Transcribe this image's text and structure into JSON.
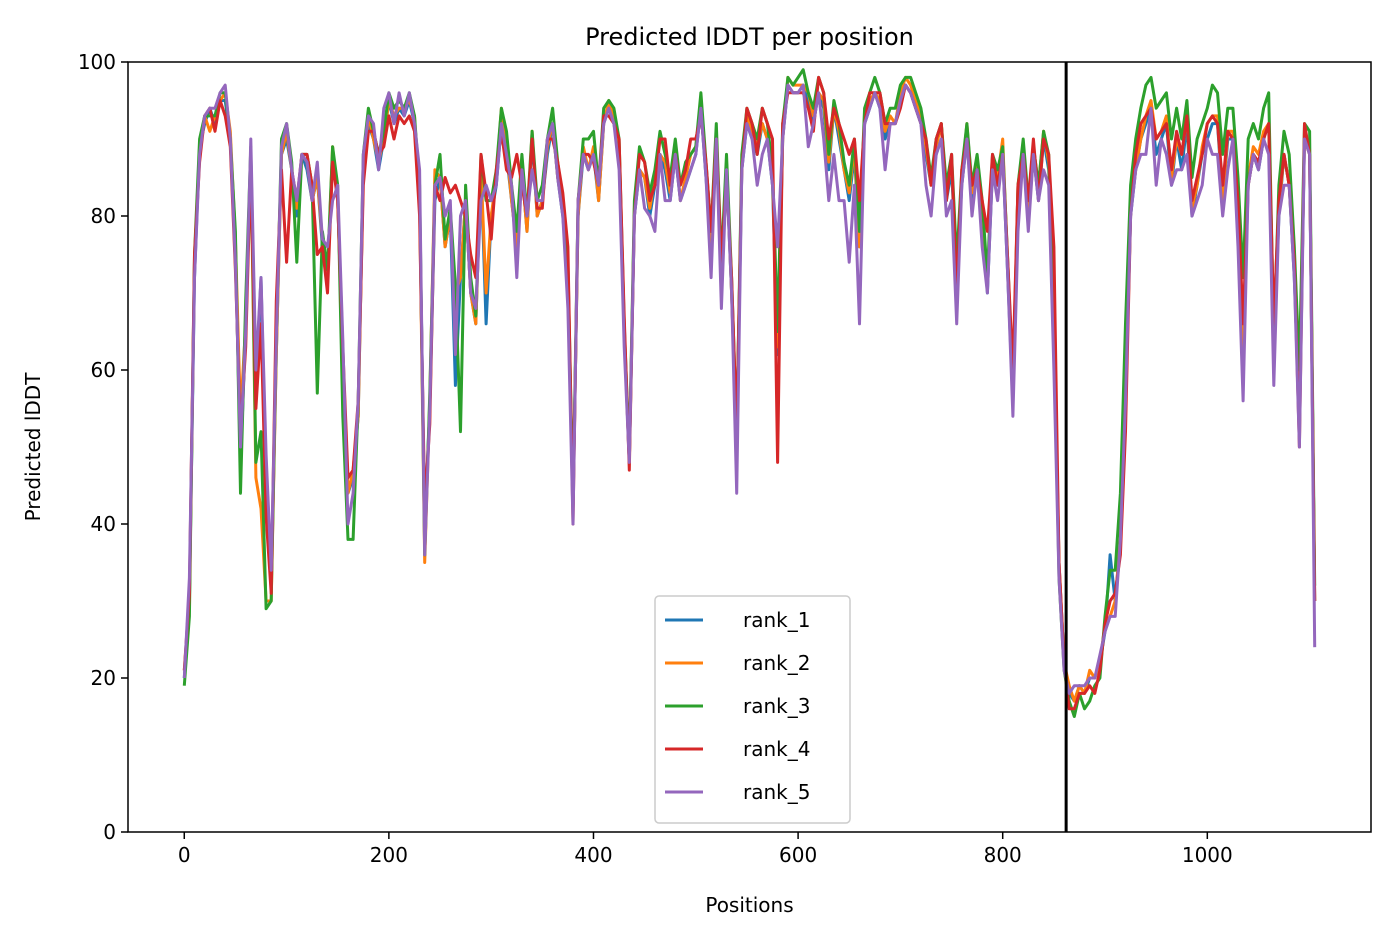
{
  "chart_data": {
    "type": "line",
    "title": "Predicted lDDT per position",
    "xlabel": "Positions",
    "ylabel": "Predicted lDDT",
    "xlim": [
      -55,
      1160
    ],
    "ylim": [
      0,
      100
    ],
    "xticks": [
      0,
      200,
      400,
      600,
      800,
      1000
    ],
    "yticks": [
      0,
      20,
      40,
      60,
      80,
      100
    ],
    "grid": false,
    "legend_position": "bottom-center",
    "vline_x": 862,
    "series": [
      {
        "name": "rank_1",
        "color": "#1f77b4"
      },
      {
        "name": "rank_2",
        "color": "#ff7f0e"
      },
      {
        "name": "rank_3",
        "color": "#2ca02c"
      },
      {
        "name": "rank_4",
        "color": "#d62728"
      },
      {
        "name": "rank_5",
        "color": "#9467bd"
      }
    ],
    "x": [
      0,
      5,
      10,
      15,
      20,
      25,
      30,
      35,
      40,
      45,
      50,
      55,
      60,
      65,
      70,
      75,
      80,
      85,
      90,
      95,
      100,
      105,
      110,
      115,
      120,
      125,
      130,
      135,
      140,
      145,
      150,
      155,
      160,
      165,
      170,
      175,
      180,
      185,
      190,
      195,
      200,
      205,
      210,
      215,
      220,
      225,
      230,
      235,
      240,
      245,
      250,
      255,
      260,
      265,
      270,
      275,
      280,
      285,
      290,
      295,
      300,
      305,
      310,
      315,
      320,
      325,
      330,
      335,
      340,
      345,
      350,
      355,
      360,
      365,
      370,
      375,
      380,
      385,
      390,
      395,
      400,
      405,
      410,
      415,
      420,
      425,
      430,
      435,
      440,
      445,
      450,
      455,
      460,
      465,
      470,
      475,
      480,
      485,
      490,
      495,
      500,
      505,
      510,
      515,
      520,
      525,
      530,
      535,
      540,
      545,
      550,
      555,
      560,
      565,
      570,
      575,
      580,
      585,
      590,
      595,
      600,
      605,
      610,
      615,
      620,
      625,
      630,
      635,
      640,
      645,
      650,
      655,
      660,
      665,
      670,
      675,
      680,
      685,
      690,
      695,
      700,
      705,
      710,
      715,
      720,
      725,
      730,
      735,
      740,
      745,
      750,
      755,
      760,
      765,
      770,
      775,
      780,
      785,
      790,
      795,
      800,
      805,
      810,
      815,
      820,
      825,
      830,
      835,
      840,
      845,
      850,
      855,
      860,
      865,
      870,
      875,
      880,
      885,
      890,
      895,
      900,
      905,
      910,
      915,
      920,
      925,
      930,
      935,
      940,
      945,
      950,
      955,
      960,
      965,
      970,
      975,
      980,
      985,
      990,
      995,
      1000,
      1005,
      1010,
      1015,
      1020,
      1025,
      1030,
      1035,
      1040,
      1045,
      1050,
      1055,
      1060,
      1065,
      1070,
      1075,
      1080,
      1085,
      1090,
      1095,
      1100,
      1105
    ],
    "base": [
      20,
      30,
      72,
      88,
      92,
      94,
      92,
      95,
      95,
      90,
      75,
      48,
      65,
      88,
      58,
      72,
      45,
      32,
      62,
      88,
      90,
      86,
      80,
      88,
      86,
      82,
      85,
      76,
      72,
      88,
      82,
      62,
      44,
      46,
      54,
      86,
      92,
      90,
      86,
      90,
      95,
      92,
      94,
      93,
      95,
      92,
      82,
      40,
      55,
      82,
      85,
      76,
      80,
      70,
      72,
      82,
      70,
      66,
      86,
      80,
      80,
      84,
      92,
      88,
      82,
      76,
      86,
      78,
      90,
      80,
      82,
      88,
      92,
      85,
      80,
      72,
      42,
      80,
      88,
      86,
      88,
      82,
      92,
      94,
      92,
      88,
      65,
      48,
      80,
      86,
      85,
      80,
      84,
      88,
      86,
      82,
      88,
      82,
      84,
      86,
      88,
      94,
      85,
      76,
      90,
      72,
      86,
      70,
      50,
      86,
      92,
      90,
      88,
      92,
      90,
      84,
      62,
      90,
      97,
      96,
      96,
      97,
      95,
      92,
      96,
      94,
      86,
      94,
      90,
      86,
      82,
      88,
      76,
      92,
      94,
      96,
      94,
      90,
      92,
      92,
      95,
      97,
      96,
      94,
      92,
      88,
      84,
      88,
      90,
      82,
      86,
      72,
      84,
      90,
      82,
      86,
      80,
      70,
      86,
      84,
      88,
      72,
      56,
      82,
      88,
      80,
      88,
      82,
      90,
      86,
      66,
      35,
      22,
      18,
      17,
      19,
      18,
      20,
      20,
      22,
      26,
      28,
      30,
      38,
      56,
      80,
      86,
      90,
      92,
      94,
      88,
      90,
      92,
      84,
      90,
      86,
      92,
      80,
      84,
      88,
      90,
      92,
      92,
      82,
      90,
      90,
      80,
      62,
      84,
      88,
      86,
      90,
      92,
      62,
      80,
      88,
      84,
      72,
      54,
      90,
      88,
      30
    ],
    "offsets": [
      [
        0,
        0,
        0,
        1,
        0,
        0,
        0,
        0,
        0,
        0,
        1,
        0,
        0,
        0,
        0,
        0,
        0,
        0,
        0,
        0,
        0,
        0,
        0,
        0,
        0,
        0,
        0,
        0,
        0,
        0,
        0,
        0,
        0,
        0,
        0,
        0,
        0,
        0,
        0,
        0,
        0,
        0,
        0,
        0,
        0,
        0,
        0,
        0,
        0,
        0,
        0,
        0,
        0,
        -12,
        0,
        0,
        0,
        0,
        0,
        -14,
        0,
        0,
        0,
        0,
        0,
        0,
        0,
        0,
        0,
        0,
        0,
        0,
        0,
        0,
        0,
        0,
        0,
        0,
        0,
        0,
        0,
        0,
        0,
        0,
        0,
        0,
        0,
        0,
        0,
        0,
        0,
        0,
        0,
        0,
        0,
        0,
        0,
        0,
        0,
        0,
        0,
        0,
        0,
        0,
        0,
        0,
        0,
        0,
        0,
        0,
        0,
        0,
        0,
        0,
        0,
        0,
        0,
        0,
        0,
        0,
        0,
        0,
        0,
        0,
        0,
        0,
        0,
        0,
        0,
        0,
        0,
        0,
        0,
        0,
        0,
        0,
        0,
        0,
        0,
        0,
        0,
        0,
        0,
        0,
        0,
        0,
        0,
        0,
        0,
        0,
        0,
        0,
        0,
        0,
        0,
        0,
        0,
        0,
        0,
        0,
        0,
        0,
        0,
        0,
        0,
        0,
        0,
        0,
        0,
        0,
        0,
        0,
        0,
        0,
        0,
        0,
        0,
        0,
        0,
        0,
        0,
        8,
        0,
        0,
        0,
        0,
        0,
        0,
        0,
        0,
        0,
        0,
        0,
        0,
        0,
        0,
        0,
        0,
        0,
        0,
        0,
        0,
        0,
        0,
        0,
        0,
        2,
        0,
        0,
        0,
        0,
        0,
        0,
        0,
        0,
        0,
        0,
        0,
        0,
        0,
        0,
        0
      ],
      [
        1,
        0,
        2,
        1,
        1,
        -3,
        1,
        0,
        1,
        1,
        2,
        6,
        1,
        0,
        -12,
        -30,
        -15,
        -2,
        0,
        0,
        1,
        0,
        1,
        0,
        1,
        0,
        0,
        1,
        0,
        1,
        0,
        0,
        0,
        1,
        0,
        0,
        1,
        0,
        1,
        0,
        0,
        1,
        0,
        1,
        0,
        1,
        0,
        -5,
        1,
        4,
        0,
        0,
        0,
        0,
        0,
        0,
        0,
        0,
        0,
        -10,
        0,
        1,
        2,
        1,
        0,
        0,
        0,
        0,
        1,
        0,
        0,
        1,
        0,
        0,
        1,
        0,
        0,
        0,
        1,
        0,
        1,
        0,
        0,
        1,
        1,
        1,
        0,
        0,
        1,
        0,
        0,
        1,
        1,
        0,
        1,
        1,
        1,
        0,
        1,
        2,
        1,
        1,
        1,
        0,
        1,
        0,
        1,
        0,
        1,
        1,
        1,
        1,
        1,
        0,
        0,
        1,
        1,
        0,
        1,
        1,
        1,
        0,
        1,
        1,
        0,
        1,
        1,
        0,
        1,
        0,
        1,
        1,
        0,
        1,
        1,
        0,
        1,
        1,
        1,
        0,
        1,
        1,
        1,
        1,
        1,
        1,
        0,
        1,
        2,
        1,
        1,
        1,
        1,
        2,
        1,
        1,
        1,
        1,
        1,
        1,
        2,
        1,
        1,
        2,
        1,
        1,
        1,
        2,
        1,
        1,
        1,
        0,
        0,
        1,
        0,
        0,
        0,
        1,
        0,
        0,
        1,
        0,
        0,
        0,
        1,
        1,
        0,
        0,
        1,
        1,
        2,
        1,
        1,
        1,
        0,
        2,
        1,
        1,
        0,
        1,
        2,
        1,
        1,
        0,
        1,
        1,
        0,
        1,
        1,
        1,
        2,
        1,
        0,
        1,
        1,
        0,
        0,
        1,
        1,
        0
      ],
      [
        -1,
        -2,
        3,
        2,
        1,
        -1,
        1,
        1,
        1,
        0,
        3,
        -4,
        4,
        1,
        -10,
        -20,
        -16,
        -2,
        2,
        2,
        2,
        1,
        -6,
        0,
        2,
        2,
        -28,
        2,
        1,
        1,
        2,
        -8,
        -6,
        -8,
        2,
        2,
        2,
        1,
        2,
        1,
        1,
        2,
        1,
        1,
        1,
        1,
        2,
        -4,
        2,
        2,
        3,
        1,
        1,
        1,
        -20,
        2,
        2,
        1,
        2,
        2,
        2,
        2,
        2,
        3,
        2,
        2,
        2,
        2,
        1,
        2,
        2,
        2,
        2,
        2,
        2,
        2,
        1,
        2,
        2,
        4,
        3,
        2,
        2,
        1,
        2,
        2,
        1,
        1,
        2,
        3,
        2,
        3,
        2,
        3,
        2,
        3,
        2,
        2,
        3,
        2,
        1,
        2,
        2,
        2,
        2,
        2,
        2,
        2,
        2,
        2,
        2,
        2,
        2,
        2,
        2,
        2,
        3,
        2,
        1,
        1,
        2,
        2,
        1,
        2,
        2,
        2,
        2,
        1,
        2,
        1,
        2,
        2,
        2,
        2,
        2,
        2,
        2,
        2,
        2,
        2,
        2,
        1,
        2,
        2,
        2,
        2,
        1,
        2,
        2,
        2,
        2,
        2,
        2,
        2,
        2,
        2,
        2,
        2,
        2,
        2,
        1,
        2,
        2,
        2,
        2,
        2,
        1,
        2,
        1,
        2,
        1,
        -2,
        -1,
        -1,
        -2,
        -1,
        -2,
        -3,
        -1,
        -2,
        2,
        6,
        4,
        6,
        10,
        4,
        4,
        4,
        5,
        4,
        6,
        5,
        4,
        6,
        4,
        4,
        3,
        5,
        6,
        4,
        4,
        5,
        4,
        6,
        4,
        4,
        5,
        10,
        6,
        4,
        4,
        4,
        4,
        2,
        4,
        3,
        4,
        4,
        6,
        2,
        3,
        2
      ],
      [
        1,
        1,
        3,
        -1,
        1,
        0,
        -1,
        0,
        -2,
        -1,
        -2,
        4,
        -2,
        -1,
        -3,
        -6,
        -4,
        -1,
        7,
        -2,
        -16,
        0,
        2,
        0,
        2,
        2,
        -10,
        0,
        -2,
        -1,
        0,
        1,
        2,
        1,
        2,
        -2,
        -1,
        1,
        2,
        -1,
        -2,
        -2,
        -1,
        -1,
        -2,
        -1,
        -2,
        2,
        -2,
        2,
        -3,
        9,
        3,
        14,
        10,
        -2,
        5,
        6,
        2,
        3,
        -3,
        2,
        -1,
        -2,
        3,
        12,
        -2,
        2,
        0,
        1,
        -1,
        2,
        -2,
        2,
        3,
        4,
        -2,
        2,
        0,
        2,
        -1,
        2,
        1,
        -1,
        0,
        2,
        2,
        -1,
        0,
        2,
        2,
        2,
        0,
        2,
        4,
        2,
        0,
        2,
        2,
        4,
        2,
        -1,
        2,
        2,
        0,
        2,
        -1,
        2,
        2,
        0,
        2,
        2,
        0,
        2,
        2,
        6,
        -14,
        2,
        -1,
        0,
        0,
        -1,
        -1,
        -1,
        2,
        2,
        4,
        0,
        2,
        4,
        6,
        2,
        6,
        0,
        2,
        0,
        2,
        2,
        0,
        0,
        -1,
        0,
        0,
        0,
        0,
        2,
        0,
        2,
        2,
        0,
        2,
        -2,
        2,
        0,
        2,
        0,
        2,
        8,
        2,
        0,
        0,
        2,
        4,
        2,
        0,
        2,
        2,
        0,
        0,
        2,
        10,
        0,
        0,
        -2,
        -1,
        -1,
        0,
        -1,
        -2,
        -1,
        1,
        2,
        1,
        -2,
        -4,
        0,
        2,
        2,
        1,
        0,
        2,
        1,
        0,
        2,
        1,
        2,
        1,
        2,
        1,
        0,
        2,
        1,
        0,
        2,
        1,
        0,
        2,
        4,
        0,
        0,
        1,
        0,
        0,
        4,
        2,
        0,
        0,
        2,
        -4,
        2,
        0,
        0
      ],
      [
        0,
        3,
        0,
        0,
        1,
        0,
        2,
        1,
        2,
        0,
        -1,
        2,
        0,
        2,
        2,
        0,
        4,
        2,
        2,
        1,
        2,
        0,
        2,
        0,
        1,
        0,
        2,
        1,
        4,
        -6,
        2,
        2,
        -4,
        -2,
        2,
        2,
        1,
        2,
        0,
        4,
        1,
        0,
        2,
        0,
        1,
        0,
        4,
        -4,
        0,
        2,
        0,
        4,
        2,
        -8,
        8,
        0,
        0,
        2,
        -4,
        4,
        2,
        0,
        0,
        0,
        2,
        -4,
        0,
        2,
        -4,
        2,
        0,
        2,
        0,
        0,
        0,
        -4,
        -2,
        2,
        0,
        0,
        0,
        2,
        0,
        0,
        0,
        -2,
        -2,
        0,
        0,
        0,
        -4,
        0,
        -6,
        0,
        -4,
        0,
        0,
        0,
        0,
        0,
        0,
        0,
        0,
        -4,
        0,
        -4,
        0,
        0,
        -6,
        0,
        0,
        0,
        -4,
        -4,
        0,
        0,
        14,
        0,
        0,
        0,
        0,
        0,
        -6,
        0,
        0,
        -4,
        -4,
        -6,
        -8,
        -4,
        -8,
        -4,
        -10,
        0,
        0,
        0,
        0,
        -4,
        0,
        0,
        0,
        0,
        0,
        0,
        0,
        -4,
        -4,
        0,
        0,
        -2,
        -4,
        -6,
        0,
        0,
        -2,
        0,
        -4,
        0,
        0,
        -2,
        0,
        0,
        -2,
        -4,
        0,
        -2,
        0,
        0,
        -4,
        -2,
        -6,
        -2,
        -1,
        0,
        2,
        0,
        1,
        0,
        0,
        1,
        0,
        0,
        -2,
        0,
        0,
        0,
        0,
        -2,
        -4,
        0,
        -4,
        0,
        -4,
        0,
        -4,
        0,
        -4,
        0,
        -2,
        -4,
        0,
        -4,
        -4,
        -2,
        -4,
        0,
        -4,
        -6,
        0,
        0,
        0,
        0,
        -4,
        -4,
        0,
        -4,
        0,
        0,
        -4,
        0,
        0,
        -6
      ]
    ]
  }
}
